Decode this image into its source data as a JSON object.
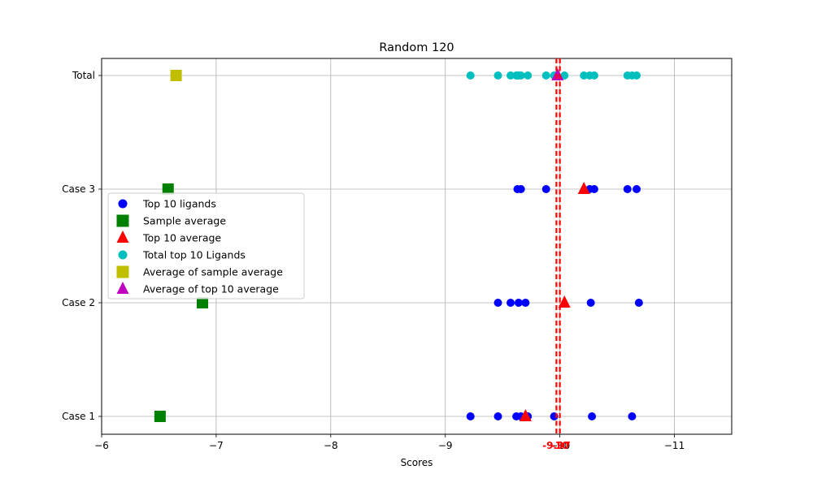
{
  "chart_data": {
    "type": "scatter",
    "title": "Random 120",
    "xlabel": "Scores",
    "ylabel": "",
    "xlim": [
      -6,
      -11.5
    ],
    "x_reversed": true,
    "xticks": [
      -6,
      -7,
      -8,
      -9,
      -10,
      -11
    ],
    "xtick_labels": [
      "−6",
      "−7",
      "−8",
      "−9",
      "−10",
      "−11"
    ],
    "categories": [
      "Case 1",
      "Case 2",
      "Case 3",
      "Total"
    ],
    "grid": true,
    "legend_position": "center-left",
    "series": [
      {
        "name": "Top 10 ligands",
        "marker": "circle",
        "color": "#0000ff",
        "points": [
          {
            "x": -9.22,
            "y": "Case 1"
          },
          {
            "x": -9.46,
            "y": "Case 1"
          },
          {
            "x": -9.62,
            "y": "Case 1"
          },
          {
            "x": -9.66,
            "y": "Case 1"
          },
          {
            "x": -9.72,
            "y": "Case 1"
          },
          {
            "x": -9.95,
            "y": "Case 1"
          },
          {
            "x": -10.28,
            "y": "Case 1"
          },
          {
            "x": -10.63,
            "y": "Case 1"
          },
          {
            "x": -9.46,
            "y": "Case 2"
          },
          {
            "x": -9.57,
            "y": "Case 2"
          },
          {
            "x": -9.64,
            "y": "Case 2"
          },
          {
            "x": -9.7,
            "y": "Case 2"
          },
          {
            "x": -10.27,
            "y": "Case 2"
          },
          {
            "x": -10.69,
            "y": "Case 2"
          },
          {
            "x": -9.63,
            "y": "Case 3"
          },
          {
            "x": -9.66,
            "y": "Case 3"
          },
          {
            "x": -9.88,
            "y": "Case 3"
          },
          {
            "x": -10.26,
            "y": "Case 3"
          },
          {
            "x": -10.3,
            "y": "Case 3"
          },
          {
            "x": -10.59,
            "y": "Case 3"
          },
          {
            "x": -10.67,
            "y": "Case 3"
          }
        ]
      },
      {
        "name": "Sample average",
        "marker": "square",
        "color": "#008000",
        "points": [
          {
            "x": -6.51,
            "y": "Case 1"
          },
          {
            "x": -6.88,
            "y": "Case 2"
          },
          {
            "x": -6.58,
            "y": "Case 3"
          }
        ]
      },
      {
        "name": "Top 10 average",
        "marker": "triangle",
        "color": "#ff0000",
        "points": [
          {
            "x": -9.7,
            "y": "Case 1"
          },
          {
            "x": -10.04,
            "y": "Case 2"
          },
          {
            "x": -10.21,
            "y": "Case 3"
          }
        ]
      },
      {
        "name": "Total top 10 Ligands",
        "marker": "circle",
        "color": "#00bfbf",
        "points": [
          {
            "x": -9.22,
            "y": "Total"
          },
          {
            "x": -9.46,
            "y": "Total"
          },
          {
            "x": -9.57,
            "y": "Total"
          },
          {
            "x": -9.62,
            "y": "Total"
          },
          {
            "x": -9.64,
            "y": "Total"
          },
          {
            "x": -9.66,
            "y": "Total"
          },
          {
            "x": -9.72,
            "y": "Total"
          },
          {
            "x": -9.88,
            "y": "Total"
          },
          {
            "x": -9.95,
            "y": "Total"
          },
          {
            "x": -10.04,
            "y": "Total"
          },
          {
            "x": -10.21,
            "y": "Total"
          },
          {
            "x": -10.26,
            "y": "Total"
          },
          {
            "x": -10.3,
            "y": "Total"
          },
          {
            "x": -10.59,
            "y": "Total"
          },
          {
            "x": -10.63,
            "y": "Total"
          },
          {
            "x": -10.67,
            "y": "Total"
          }
        ]
      },
      {
        "name": "Average of sample average",
        "marker": "square",
        "color": "#bfbf00",
        "points": [
          {
            "x": -6.65,
            "y": "Total"
          }
        ]
      },
      {
        "name": "Average of top 10 average",
        "marker": "triangle",
        "color": "#bf00bf",
        "points": [
          {
            "x": -9.98,
            "y": "Total"
          }
        ]
      }
    ],
    "reference_lines": [
      {
        "x": -9.97,
        "label": "-9.97",
        "color": "#ff0000",
        "style": "dashed"
      },
      {
        "x": -10.0,
        "label": "-10",
        "color": "#ff0000",
        "style": "dashed"
      }
    ]
  }
}
